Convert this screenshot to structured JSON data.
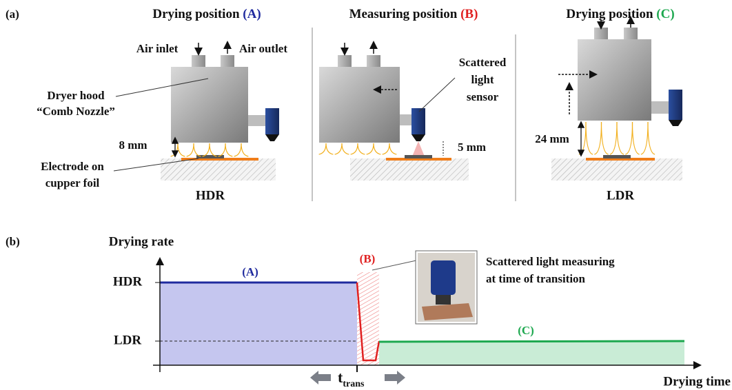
{
  "labels": {
    "a": "(a)",
    "b": "(b)"
  },
  "panel_a": {
    "title": "Drying position",
    "tag": "(A)",
    "air_inlet": "Air inlet",
    "air_outlet": "Air outlet",
    "hood": [
      "Dryer hood",
      "“Comb Nozzle”"
    ],
    "gap": "8 mm",
    "electrode": [
      "Electrode on",
      "cupper foil"
    ],
    "rate": "HDR"
  },
  "panel_b": {
    "title": "Measuring position",
    "tag": "(B)",
    "sensor": [
      "Scattered",
      "light",
      "sensor"
    ],
    "gap": "5 mm"
  },
  "panel_c": {
    "title": "Drying position",
    "tag": "(C)",
    "gap": "24 mm",
    "rate": "LDR"
  },
  "plot": {
    "y_axis": "Drying rate",
    "x_axis": "Drying time",
    "levels": [
      "HDR",
      "LDR"
    ],
    "phases": [
      "(A)",
      "(B)",
      "(C)"
    ],
    "note": [
      "Scattered light measuring",
      "at time of transition"
    ],
    "t": "t",
    "t_sub": "trans"
  }
}
